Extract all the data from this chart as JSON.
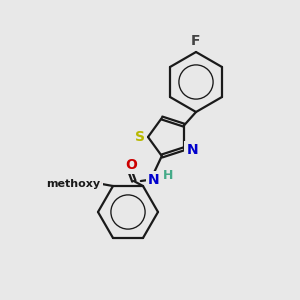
{
  "bg_color": "#e8e8e8",
  "bond_color": "#1a1a1a",
  "bond_width": 1.6,
  "F_color": "#444444",
  "S_color": "#b8b800",
  "N_color": "#0000cc",
  "O_color": "#cc0000",
  "H_color": "#44aa88",
  "font_size": 10,
  "fig_size": [
    3.0,
    3.0
  ],
  "dpi": 100,
  "xlim": [
    0,
    300
  ],
  "ylim": [
    0,
    300
  ]
}
